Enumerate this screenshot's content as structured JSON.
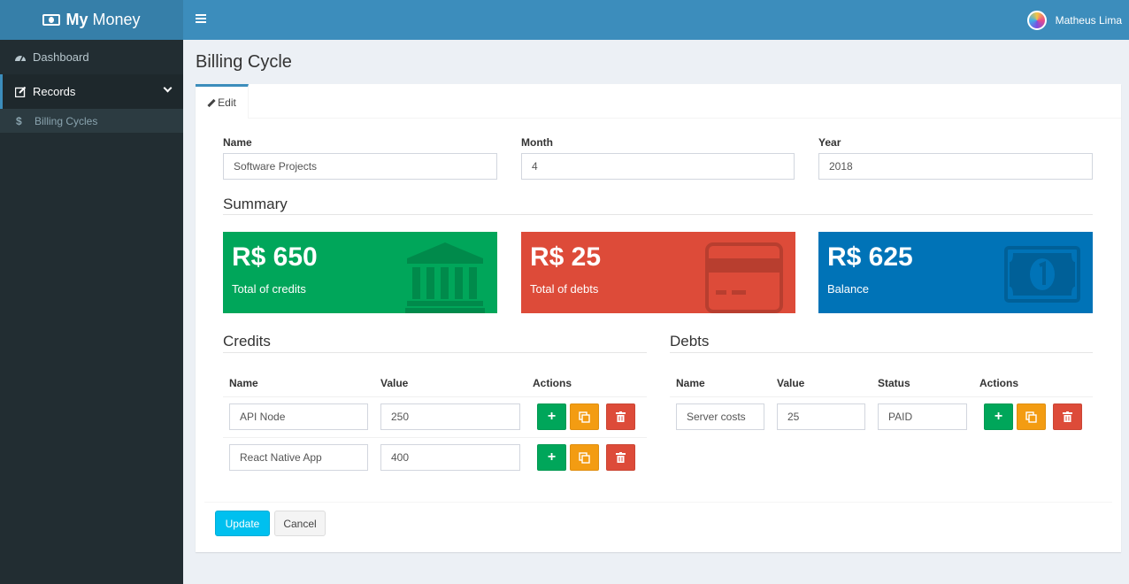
{
  "app": {
    "logo_bold": "My",
    "logo_text": "Money"
  },
  "header": {
    "user_name": "Matheus Lima"
  },
  "sidebar": {
    "items": [
      {
        "label": "Dashboard",
        "icon": "dashboard-icon"
      },
      {
        "label": "Records",
        "icon": "edit-icon"
      }
    ],
    "sub_items": [
      {
        "label": "Billing Cycles",
        "icon": "dollar-icon"
      }
    ]
  },
  "page": {
    "title": "Billing Cycle"
  },
  "tabs": [
    {
      "label": "Edit"
    }
  ],
  "form": {
    "name_label": "Name",
    "name_value": "Software Projects",
    "month_label": "Month",
    "month_value": "4",
    "year_label": "Year",
    "year_value": "2018"
  },
  "summary": {
    "title": "Summary",
    "cards": [
      {
        "amount": "R$ 650",
        "caption": "Total of credits",
        "color": "#00a65a",
        "icon": "bank-icon"
      },
      {
        "amount": "R$ 25",
        "caption": "Total of debts",
        "color": "#dd4b39",
        "icon": "credit-card-icon"
      },
      {
        "amount": "R$ 625",
        "caption": "Balance",
        "color": "#0073b7",
        "icon": "money-icon"
      }
    ]
  },
  "credits": {
    "title": "Credits",
    "columns": [
      "Name",
      "Value",
      "Actions"
    ],
    "rows": [
      {
        "name": "API Node",
        "value": "250"
      },
      {
        "name": "React Native App",
        "value": "400"
      }
    ]
  },
  "debts": {
    "title": "Debts",
    "columns": [
      "Name",
      "Value",
      "Status",
      "Actions"
    ],
    "rows": [
      {
        "name": "Server costs",
        "value": "25",
        "status": "PAID"
      }
    ]
  },
  "footer": {
    "update_label": "Update",
    "cancel_label": "Cancel"
  }
}
